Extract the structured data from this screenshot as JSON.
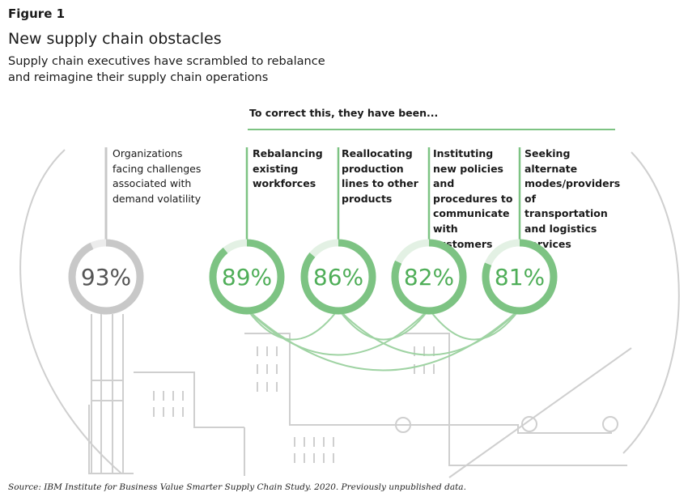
{
  "figure_label": "Figure 1",
  "title": "New supply chain obstacles",
  "subtitle": "Supply chain executives have scrambled to rebalance and reimagine their supply chain operations",
  "bracket_label": "To correct this, they have been...",
  "source": "Source: IBM Institute for Business Value Smarter Supply Chain Study. 2020. Previously unpublished data.",
  "colors": {
    "gray": "#c8c8c8",
    "green": "#7dc383",
    "gray_text": "#555555",
    "green_text": "#4fae58"
  },
  "chart_data": {
    "type": "donut",
    "title": "New supply chain obstacles",
    "unit": "%",
    "items": [
      {
        "id": "challenges",
        "label": "Organizations facing challenges associated with demand volatility",
        "value": 93,
        "display": "93%",
        "group": "challenge"
      },
      {
        "id": "rebalancing",
        "label": "Rebalancing existing workforces",
        "value": 89,
        "display": "89%",
        "group": "correction"
      },
      {
        "id": "reallocating",
        "label": "Reallocating production lines to other products",
        "value": 86,
        "display": "86%",
        "group": "correction"
      },
      {
        "id": "instituting",
        "label": "Instituting new policies and procedures to communicate with customers",
        "value": 82,
        "display": "82%",
        "group": "correction"
      },
      {
        "id": "seeking",
        "label": "Seeking alternate modes/providers of transportation and logistics services",
        "value": 81,
        "display": "81%",
        "group": "correction"
      }
    ]
  }
}
